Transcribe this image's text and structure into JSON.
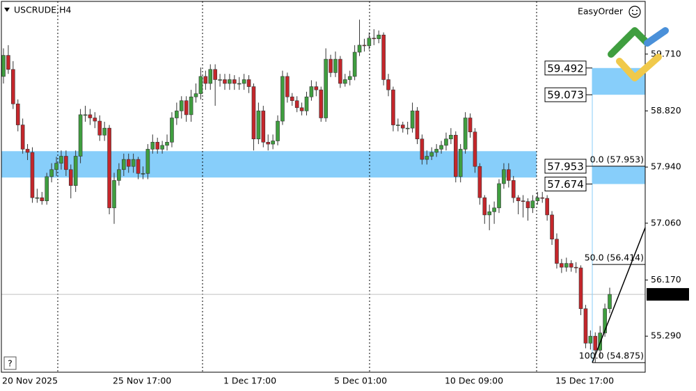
{
  "chart_data": {
    "type": "candlestick",
    "title": "USCRUDE,H4",
    "easy_order": "EasyOrder",
    "help": "?",
    "up_color": "#3f9e3f",
    "down_color": "#c4262b",
    "zone_color": "#87cefa",
    "ylim": [
      54.725,
      60.536
    ],
    "yticks": [
      {
        "value": 55.29,
        "label": "55.290"
      },
      {
        "value": 56.17,
        "label": "56.170"
      },
      {
        "value": 57.06,
        "label": "57.060"
      },
      {
        "value": 57.94,
        "label": "57.940"
      },
      {
        "value": 58.82,
        "label": "58.820"
      },
      {
        "value": 59.71,
        "label": "59.710"
      }
    ],
    "categories": [
      "20 Nov 2025",
      null,
      null,
      null,
      null,
      null,
      null,
      null,
      null,
      null,
      null,
      null,
      null,
      null,
      null,
      null,
      null,
      null,
      null,
      null,
      null,
      null,
      null,
      "25 Nov 17:00",
      null,
      null,
      null,
      null,
      null,
      null,
      null,
      null,
      null,
      null,
      null,
      null,
      null,
      null,
      null,
      null,
      null,
      null,
      null,
      null,
      null,
      null,
      "1 Dec 17:00",
      null,
      null,
      null,
      null,
      null,
      null,
      null,
      null,
      null,
      null,
      null,
      null,
      null,
      null,
      null,
      null,
      null,
      null,
      null,
      null,
      null,
      null,
      "5 Dec 01:00",
      null,
      null,
      null,
      null,
      null,
      null,
      null,
      null,
      null,
      null,
      null,
      null,
      null,
      null,
      null,
      null,
      null,
      null,
      null,
      null,
      null,
      null,
      "10 Dec 09:00",
      null,
      null,
      null,
      null,
      null,
      null,
      null,
      null,
      null,
      null,
      null,
      null,
      null,
      null,
      null,
      null,
      null,
      null,
      null,
      null,
      null,
      null,
      "15 Dec 17:00",
      null,
      null,
      null,
      null,
      null,
      null,
      null,
      null,
      null,
      null,
      null
    ],
    "open": [
      59.36,
      59.69,
      59.47,
      58.93,
      58.6,
      58.22,
      58.17,
      57.46,
      57.46,
      57.41,
      57.79,
      57.9,
      58.0,
      58.11,
      57.9,
      57.65,
      58.11,
      58.76,
      58.76,
      58.71,
      58.66,
      58.44,
      58.55,
      57.3,
      57.73,
      57.9,
      58.06,
      57.95,
      58.06,
      57.84,
      57.84,
      58.22,
      58.33,
      58.22,
      58.28,
      58.33,
      58.71,
      58.82,
      58.98,
      58.76,
      59.04,
      59.09,
      59.36,
      59.25,
      59.47,
      59.31,
      59.31,
      59.25,
      59.31,
      59.25,
      59.25,
      59.31,
      59.2,
      58.38,
      58.82,
      58.33,
      58.3,
      58.35,
      58.66,
      59.36,
      59.04,
      58.98,
      58.87,
      58.82,
      59.04,
      59.2,
      59.15,
      58.71,
      59.63,
      59.42,
      59.63,
      59.25,
      59.31,
      59.36,
      59.74,
      59.85,
      59.84,
      59.96,
      59.95,
      60.01,
      59.31,
      59.15,
      58.6,
      58.6,
      58.55,
      58.55,
      58.82,
      58.38,
      58.06,
      58.11,
      58.17,
      58.22,
      58.28,
      58.38,
      58.44,
      57.79,
      58.22,
      58.71,
      58.49,
      57.95,
      57.46,
      57.19,
      57.24,
      57.3,
      57.68,
      57.9,
      57.73,
      57.46,
      57.41,
      57.4,
      57.3,
      57.41,
      57.46,
      57.45,
      57.19,
      56.81,
      56.43,
      56.37,
      56.43,
      56.37,
      56.36,
      55.72,
      55.18,
      55.29,
      55.07,
      55.34,
      55.72
    ],
    "high": [
      59.8,
      59.85,
      59.6,
      59.0,
      58.7,
      58.3,
      58.25,
      57.6,
      57.55,
      57.85,
      58.0,
      58.1,
      58.2,
      58.2,
      57.98,
      58.2,
      58.85,
      58.9,
      58.85,
      58.8,
      58.75,
      58.65,
      58.6,
      57.85,
      58.0,
      58.15,
      58.15,
      58.15,
      58.1,
      57.95,
      58.3,
      58.45,
      58.4,
      58.35,
      58.45,
      58.8,
      58.95,
      59.05,
      59.05,
      59.15,
      59.25,
      59.5,
      59.45,
      59.55,
      59.55,
      59.4,
      59.4,
      59.4,
      59.38,
      59.35,
      59.4,
      59.38,
      59.25,
      58.95,
      58.9,
      58.45,
      58.45,
      58.75,
      59.45,
      59.42,
      59.1,
      59.05,
      58.95,
      59.12,
      59.3,
      59.28,
      59.2,
      59.8,
      59.7,
      59.75,
      59.68,
      59.4,
      59.45,
      59.85,
      60.25,
      59.95,
      60.05,
      60.1,
      60.08,
      60.05,
      59.4,
      59.2,
      58.7,
      58.65,
      58.65,
      58.95,
      58.88,
      58.45,
      58.2,
      58.25,
      58.3,
      58.35,
      58.48,
      58.55,
      58.5,
      58.3,
      58.8,
      58.78,
      58.55,
      58.0,
      57.5,
      57.35,
      57.4,
      57.75,
      58.0,
      58.0,
      57.8,
      57.5,
      57.5,
      57.45,
      57.5,
      57.55,
      57.55,
      57.5,
      57.25,
      56.9,
      56.5,
      56.52,
      56.48,
      56.45,
      56.4,
      55.78,
      55.38,
      55.35,
      55.45,
      55.8,
      56.05
    ],
    "low": [
      59.25,
      59.4,
      58.85,
      58.5,
      58.15,
      58.05,
      57.38,
      57.38,
      57.35,
      57.35,
      57.7,
      57.8,
      57.9,
      57.8,
      57.45,
      57.55,
      58.0,
      58.65,
      58.6,
      58.55,
      58.35,
      58.35,
      57.2,
      57.05,
      57.65,
      57.8,
      57.85,
      57.85,
      57.75,
      57.75,
      57.75,
      58.15,
      58.15,
      58.15,
      58.2,
      58.25,
      58.6,
      58.7,
      58.65,
      58.65,
      58.95,
      59.0,
      59.15,
      59.15,
      58.9,
      59.2,
      59.15,
      59.15,
      59.15,
      59.15,
      59.15,
      59.1,
      58.2,
      58.3,
      58.25,
      58.2,
      58.22,
      58.28,
      58.6,
      58.95,
      58.9,
      58.8,
      58.75,
      58.75,
      58.98,
      59.05,
      58.65,
      58.65,
      59.35,
      59.35,
      59.18,
      59.2,
      59.22,
      59.3,
      59.68,
      59.75,
      59.78,
      59.85,
      59.88,
      59.22,
      59.05,
      58.5,
      58.5,
      58.48,
      58.45,
      58.48,
      58.3,
      57.98,
      57.98,
      58.05,
      58.1,
      58.15,
      58.2,
      58.3,
      57.7,
      57.7,
      58.15,
      58.4,
      57.85,
      57.35,
      57.05,
      56.95,
      57.05,
      57.22,
      57.6,
      57.62,
      57.38,
      57.2,
      57.15,
      57.1,
      57.22,
      57.35,
      57.38,
      57.1,
      56.72,
      56.35,
      56.28,
      56.3,
      56.3,
      56.28,
      55.62,
      55.1,
      55.08,
      54.88,
      54.95,
      55.28,
      55.65
    ],
    "close": [
      59.69,
      59.47,
      58.93,
      58.6,
      58.22,
      58.17,
      57.46,
      57.46,
      57.41,
      57.79,
      57.9,
      58.0,
      58.11,
      57.9,
      57.65,
      58.11,
      58.76,
      58.76,
      58.71,
      58.66,
      58.44,
      58.55,
      57.3,
      57.73,
      57.9,
      58.06,
      57.95,
      58.06,
      57.84,
      57.84,
      58.22,
      58.33,
      58.22,
      58.28,
      58.33,
      58.71,
      58.82,
      58.98,
      58.76,
      59.04,
      59.09,
      59.36,
      59.25,
      59.47,
      59.31,
      59.31,
      59.25,
      59.31,
      59.25,
      59.25,
      59.31,
      59.2,
      58.38,
      58.82,
      58.33,
      58.3,
      58.35,
      58.66,
      59.36,
      59.04,
      58.98,
      58.87,
      58.82,
      59.04,
      59.2,
      59.15,
      58.71,
      59.63,
      59.42,
      59.63,
      59.25,
      59.31,
      59.36,
      59.74,
      59.85,
      59.84,
      59.96,
      59.95,
      60.01,
      59.31,
      59.15,
      58.6,
      58.6,
      58.55,
      58.55,
      58.82,
      58.38,
      58.06,
      58.11,
      58.17,
      58.22,
      58.28,
      58.38,
      58.44,
      57.79,
      58.22,
      58.71,
      58.49,
      57.95,
      57.46,
      57.19,
      57.24,
      57.3,
      57.68,
      57.9,
      57.73,
      57.46,
      57.41,
      57.4,
      57.3,
      57.41,
      57.46,
      57.45,
      57.19,
      56.81,
      56.43,
      56.37,
      56.43,
      56.37,
      56.36,
      55.72,
      55.18,
      55.29,
      55.07,
      55.34,
      55.72,
      55.945
    ],
    "last_price": 55.945,
    "zones": [
      [
        57.776,
        58.189
      ],
      [
        59.073,
        59.492
      ],
      [
        57.674,
        57.953
      ]
    ],
    "levels": [
      59.492,
      59.073,
      57.953,
      57.674
    ],
    "fib_levels": [
      {
        "value": 57.953,
        "label": "0.0 (57.953)"
      },
      {
        "value": 56.414,
        "label": "50.0 (56.414)"
      },
      {
        "value": 54.875,
        "label": "100.0 (54.875)"
      }
    ],
    "trend_line": [
      54.875,
      56.99
    ]
  }
}
